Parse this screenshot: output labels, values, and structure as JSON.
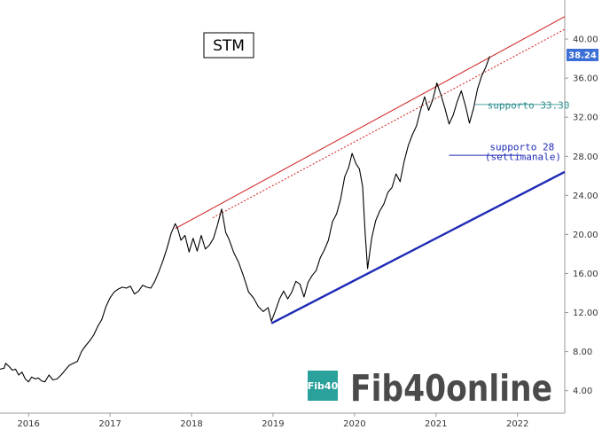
{
  "chart_data": {
    "type": "line",
    "title": "STM",
    "xlabel": "",
    "ylabel": "",
    "x_ticks": [
      "2016",
      "2017",
      "2018",
      "2019",
      "2020",
      "2021",
      "2022"
    ],
    "y_ticks": [
      "4.00",
      "8.00",
      "12.00",
      "16.00",
      "20.00",
      "24.00",
      "28.00",
      "32.00",
      "36.00",
      "40.00"
    ],
    "xlim": [
      2015.65,
      2022.58
    ],
    "ylim": [
      1.7,
      44.0
    ],
    "grid": false,
    "y_axis_side": "right",
    "last_price": "38.24",
    "series": [
      {
        "color": "#000000",
        "x": [
          2015.65,
          2015.7,
          2015.72,
          2015.76,
          2015.8,
          2015.84,
          2015.88,
          2015.92,
          2015.96,
          2016.0,
          2016.04,
          2016.08,
          2016.12,
          2016.16,
          2016.2,
          2016.25,
          2016.3,
          2016.35,
          2016.4,
          2016.45,
          2016.5,
          2016.55,
          2016.6,
          2016.65,
          2016.7,
          2016.75,
          2016.8,
          2016.85,
          2016.9,
          2016.95,
          2017.0,
          2017.05,
          2017.1,
          2017.15,
          2017.2,
          2017.25,
          2017.3,
          2017.35,
          2017.4,
          2017.45,
          2017.5,
          2017.55,
          2017.6,
          2017.65,
          2017.7,
          2017.75,
          2017.8,
          2017.83,
          2017.87,
          2017.92,
          2017.97,
          2018.02,
          2018.07,
          2018.12,
          2018.17,
          2018.22,
          2018.27,
          2018.32,
          2018.37,
          2018.42,
          2018.46,
          2018.52,
          2018.58,
          2018.64,
          2018.7,
          2018.76,
          2018.82,
          2018.88,
          2018.94,
          2018.98,
          2019.03,
          2019.08,
          2019.13,
          2019.18,
          2019.23,
          2019.28,
          2019.33,
          2019.38,
          2019.43,
          2019.48,
          2019.53,
          2019.58,
          2019.63,
          2019.68,
          2019.73,
          2019.78,
          2019.83,
          2019.88,
          2019.93,
          2019.97,
          2020.02,
          2020.06,
          2020.1,
          2020.13,
          2020.16,
          2020.21,
          2020.26,
          2020.31,
          2020.36,
          2020.41,
          2020.46,
          2020.51,
          2020.56,
          2020.61,
          2020.66,
          2020.71,
          2020.76,
          2020.81,
          2020.86,
          2020.91,
          2020.96,
          2021.01,
          2021.06,
          2021.11,
          2021.16,
          2021.21,
          2021.26,
          2021.31,
          2021.36,
          2021.41,
          2021.46,
          2021.51,
          2021.56,
          2021.61,
          2021.66
        ],
        "values": [
          6.2,
          6.3,
          6.8,
          6.5,
          6.1,
          6.2,
          5.6,
          5.9,
          5.2,
          4.9,
          5.4,
          5.2,
          5.3,
          5.0,
          4.9,
          5.6,
          5.1,
          5.2,
          5.6,
          6.1,
          6.6,
          6.8,
          7.0,
          8.0,
          8.6,
          9.1,
          9.7,
          10.6,
          11.3,
          12.6,
          13.5,
          14.1,
          14.4,
          14.6,
          14.5,
          14.7,
          13.9,
          14.2,
          14.8,
          14.6,
          14.5,
          15.2,
          16.2,
          17.3,
          18.6,
          20.1,
          21.1,
          20.6,
          19.4,
          19.9,
          18.2,
          19.6,
          18.3,
          19.9,
          18.5,
          18.9,
          19.6,
          21.0,
          22.6,
          20.2,
          19.5,
          18.1,
          17.1,
          15.7,
          14.1,
          13.5,
          12.6,
          12.1,
          12.5,
          11.1,
          12.2,
          13.4,
          14.2,
          13.4,
          14.1,
          15.2,
          14.9,
          13.6,
          15.1,
          15.8,
          16.3,
          17.6,
          18.4,
          19.4,
          21.3,
          22.1,
          23.6,
          25.9,
          26.9,
          28.3,
          27.2,
          26.7,
          24.9,
          20.2,
          16.5,
          19.6,
          21.4,
          22.4,
          23.1,
          24.3,
          24.8,
          26.2,
          25.4,
          27.5,
          29.1,
          30.2,
          31.1,
          32.7,
          34.1,
          32.7,
          33.8,
          35.5,
          34.3,
          32.9,
          31.3,
          32.2,
          33.6,
          34.7,
          33.2,
          31.4,
          32.9,
          34.9,
          36.2,
          37.1,
          38.24
        ]
      }
    ],
    "lines": [
      {
        "name": "upper_channel",
        "color": "#d32f2f",
        "style": "solid",
        "width": 1.1,
        "x": [
          2017.8,
          2022.58
        ],
        "values": [
          20.6,
          42.3
        ]
      },
      {
        "name": "upper_inner",
        "color": "#d32f2f",
        "style": "dotted",
        "width": 1.1,
        "x": [
          2018.26,
          2022.58
        ],
        "values": [
          21.7,
          41.0
        ]
      },
      {
        "name": "lower_channel",
        "color": "#1f2bb5",
        "style": "solid",
        "width": 2.4,
        "x": [
          2018.98,
          2022.58
        ],
        "values": [
          10.9,
          26.4
        ]
      },
      {
        "name": "supporto_33",
        "color": "#4aa3a3",
        "style": "solid",
        "width": 1,
        "x": [
          2021.48,
          2022.55
        ],
        "values": [
          33.3,
          33.3
        ]
      },
      {
        "name": "supporto_28",
        "color": "#1f2bb5",
        "style": "solid",
        "width": 1,
        "x": [
          2021.16,
          2022.05
        ],
        "values": [
          28.1,
          28.1
        ]
      }
    ],
    "annotations": [
      {
        "text": "supporto 33.30",
        "x": 2021.63,
        "y": 32.9,
        "color": "#2e8b8b"
      },
      {
        "text": "supporto 28",
        "x": 2021.66,
        "y": 28.6,
        "color": "#1f2bb5"
      },
      {
        "text": "(settimanale)",
        "x": 2021.6,
        "y": 27.6,
        "color": "#1f2bb5"
      }
    ]
  },
  "branding": {
    "logo_badge": "Fib40",
    "logo_text": "Fib40online",
    "badge_color": "#2aa19b",
    "text_color": "#4a4a4a"
  }
}
